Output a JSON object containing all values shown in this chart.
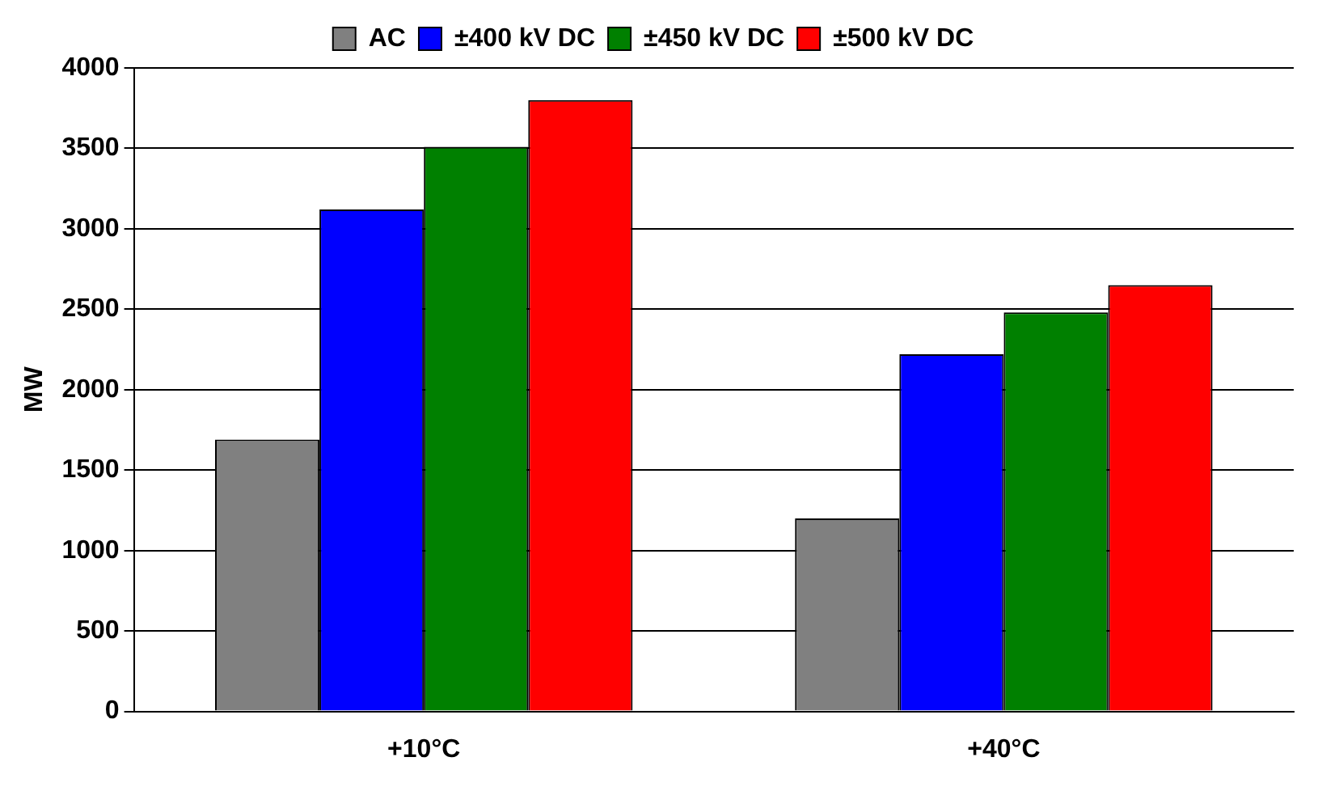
{
  "chart_data": {
    "type": "bar",
    "ylabel": "MW",
    "categories": [
      "+10°C",
      "+40°C"
    ],
    "series": [
      {
        "name": "AC",
        "color": "#808080",
        "values": [
          1690,
          1200
        ]
      },
      {
        "name": "±400 kV DC",
        "color": "#0000ff",
        "values": [
          3120,
          2220
        ]
      },
      {
        "name": "±450 kV DC",
        "color": "#008000",
        "values": [
          3510,
          2480
        ]
      },
      {
        "name": "±500 kV DC",
        "color": "#ff0000",
        "values": [
          3800,
          2650
        ]
      }
    ],
    "ylim": [
      0,
      4000
    ],
    "yticks": [
      0,
      500,
      1000,
      1500,
      2000,
      2500,
      3000,
      3500,
      4000
    ],
    "grid": "y",
    "legend": "top"
  }
}
